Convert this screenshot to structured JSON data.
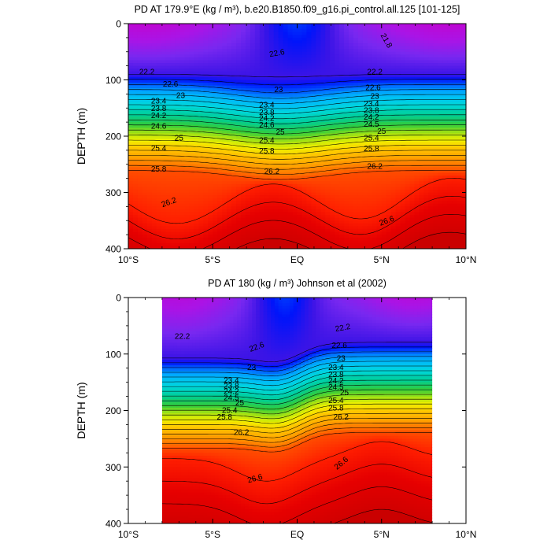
{
  "chart_data": [
    {
      "type": "contour",
      "title": "PD AT 179.9°E (kg / m³), b.e20.B1850.f09_g16.pi_control.all.125 [101-125]",
      "ylabel": "DEPTH (m)",
      "xlim": [
        -10,
        10
      ],
      "ylim": [
        400,
        0
      ],
      "x_ticks": [
        -10,
        -5,
        0,
        5,
        10
      ],
      "x_tick_labels": [
        "10°S",
        "5°S",
        "EQ",
        "5°N",
        "10°N"
      ],
      "y_ticks": [
        0,
        100,
        200,
        300,
        400
      ],
      "y_tick_labels": [
        "0",
        "100",
        "200",
        "300",
        "400"
      ],
      "data_extent": [
        -10,
        10
      ],
      "contour_levels": [
        21.6,
        21.8,
        22.0,
        22.2,
        22.4,
        22.6,
        22.8,
        23.0,
        23.2,
        23.4,
        23.6,
        23.8,
        24.0,
        24.2,
        24.4,
        24.6,
        24.8,
        25.0,
        25.2,
        25.4,
        25.6,
        25.8,
        26.0,
        26.2,
        26.4,
        26.6,
        26.8
      ],
      "contour_labels": [
        {
          "text": "21.8",
          "x": 5.3,
          "y": 30,
          "rot": 60
        },
        {
          "text": "22.2",
          "x": -8.9,
          "y": 85,
          "rot": 0
        },
        {
          "text": "22.2",
          "x": 4.6,
          "y": 85,
          "rot": 0
        },
        {
          "text": "22.6",
          "x": -1.2,
          "y": 52,
          "rot": -10
        },
        {
          "text": "22.6",
          "x": -7.5,
          "y": 107,
          "rot": 0
        },
        {
          "text": "22.6",
          "x": 4.5,
          "y": 113,
          "rot": 0
        },
        {
          "text": "23",
          "x": -6.9,
          "y": 127,
          "rot": 0
        },
        {
          "text": "23",
          "x": -1.1,
          "y": 117,
          "rot": 0
        },
        {
          "text": "23",
          "x": 4.6,
          "y": 129,
          "rot": 0
        },
        {
          "text": "23.4",
          "x": -8.2,
          "y": 137,
          "rot": 0
        },
        {
          "text": "23.4",
          "x": -1.8,
          "y": 144,
          "rot": 0
        },
        {
          "text": "23.4",
          "x": 4.4,
          "y": 142,
          "rot": 0
        },
        {
          "text": "23.8",
          "x": -8.2,
          "y": 150,
          "rot": 0
        },
        {
          "text": "23.8",
          "x": -1.8,
          "y": 157,
          "rot": 0
        },
        {
          "text": "23.8",
          "x": 4.4,
          "y": 154,
          "rot": 0
        },
        {
          "text": "24.2",
          "x": -8.2,
          "y": 163,
          "rot": 0
        },
        {
          "text": "24.2",
          "x": -1.8,
          "y": 168,
          "rot": 0
        },
        {
          "text": "24.2",
          "x": 4.4,
          "y": 166,
          "rot": 0
        },
        {
          "text": "24.6",
          "x": -8.2,
          "y": 182,
          "rot": 0
        },
        {
          "text": "24.6",
          "x": -1.8,
          "y": 180,
          "rot": 0
        },
        {
          "text": "24.5",
          "x": 4.4,
          "y": 178,
          "rot": 0
        },
        {
          "text": "25",
          "x": -7.0,
          "y": 203,
          "rot": 0
        },
        {
          "text": "25",
          "x": -1.0,
          "y": 192,
          "rot": 0
        },
        {
          "text": "25",
          "x": 5.0,
          "y": 191,
          "rot": 0
        },
        {
          "text": "25.4",
          "x": -8.2,
          "y": 221,
          "rot": 0
        },
        {
          "text": "25.4",
          "x": -1.8,
          "y": 207,
          "rot": 0
        },
        {
          "text": "25.4",
          "x": 4.4,
          "y": 203,
          "rot": 0
        },
        {
          "text": "25.8",
          "x": -8.2,
          "y": 258,
          "rot": 0
        },
        {
          "text": "25.8",
          "x": -1.8,
          "y": 226,
          "rot": 0
        },
        {
          "text": "25.8",
          "x": 4.4,
          "y": 222,
          "rot": 0
        },
        {
          "text": "26.2",
          "x": -1.5,
          "y": 262,
          "rot": 0
        },
        {
          "text": "26.2",
          "x": 4.6,
          "y": 253,
          "rot": 0
        },
        {
          "text": "26.2",
          "x": -7.6,
          "y": 317,
          "rot": -20
        },
        {
          "text": "26.6",
          "x": 5.3,
          "y": 350,
          "rot": -20
        }
      ]
    },
    {
      "type": "contour",
      "title": "PD AT 180 (kg / m³) Johnson et al (2002)",
      "ylabel": "DEPTH (m)",
      "xlim": [
        -10,
        10
      ],
      "ylim": [
        400,
        0
      ],
      "x_ticks": [
        -10,
        -5,
        0,
        5,
        10
      ],
      "x_tick_labels": [
        "10°S",
        "5°S",
        "EQ",
        "5°N",
        "10°N"
      ],
      "y_ticks": [
        0,
        100,
        200,
        300,
        400
      ],
      "y_tick_labels": [
        "0",
        "100",
        "200",
        "300",
        "400"
      ],
      "data_extent": [
        -8,
        8
      ],
      "contour_levels": [
        21.6,
        21.8,
        22.0,
        22.2,
        22.4,
        22.6,
        22.8,
        23.0,
        23.2,
        23.4,
        23.6,
        23.8,
        24.0,
        24.2,
        24.4,
        24.6,
        24.8,
        25.0,
        25.2,
        25.4,
        25.6,
        25.8,
        26.0,
        26.2,
        26.4,
        26.6,
        26.8
      ],
      "contour_labels": [
        {
          "text": "22.2",
          "x": -6.8,
          "y": 68,
          "rot": 0
        },
        {
          "text": "22.2",
          "x": 2.7,
          "y": 53,
          "rot": -10
        },
        {
          "text": "22.6",
          "x": -2.4,
          "y": 87,
          "rot": -20
        },
        {
          "text": "22.6",
          "x": 2.5,
          "y": 84,
          "rot": 0
        },
        {
          "text": "23",
          "x": -2.7,
          "y": 123,
          "rot": 0
        },
        {
          "text": "23",
          "x": 2.6,
          "y": 107,
          "rot": 0
        },
        {
          "text": "23.4",
          "x": -3.9,
          "y": 146,
          "rot": 0
        },
        {
          "text": "23.4",
          "x": 2.3,
          "y": 123,
          "rot": 0
        },
        {
          "text": "23.8",
          "x": -3.9,
          "y": 156,
          "rot": 0
        },
        {
          "text": "23.8",
          "x": 2.3,
          "y": 136,
          "rot": 0
        },
        {
          "text": "24.2",
          "x": -3.9,
          "y": 166,
          "rot": 0
        },
        {
          "text": "24.2",
          "x": 2.3,
          "y": 147,
          "rot": 0
        },
        {
          "text": "24.5",
          "x": -3.9,
          "y": 177,
          "rot": 0
        },
        {
          "text": "24.5",
          "x": 2.3,
          "y": 158,
          "rot": 0
        },
        {
          "text": "25",
          "x": -3.4,
          "y": 186,
          "rot": 0
        },
        {
          "text": "25",
          "x": 2.8,
          "y": 168,
          "rot": 0
        },
        {
          "text": "25.4",
          "x": -4.0,
          "y": 199,
          "rot": 0
        },
        {
          "text": "25.4",
          "x": 2.3,
          "y": 182,
          "rot": 0
        },
        {
          "text": "25.8",
          "x": -4.3,
          "y": 211,
          "rot": 0
        },
        {
          "text": "25.8",
          "x": 2.3,
          "y": 195,
          "rot": 0
        },
        {
          "text": "26.2",
          "x": -3.3,
          "y": 238,
          "rot": 0
        },
        {
          "text": "26.2",
          "x": 2.6,
          "y": 211,
          "rot": 0
        },
        {
          "text": "26.6",
          "x": -2.5,
          "y": 320,
          "rot": -15
        },
        {
          "text": "26.6",
          "x": 2.6,
          "y": 293,
          "rot": -40
        }
      ]
    }
  ]
}
